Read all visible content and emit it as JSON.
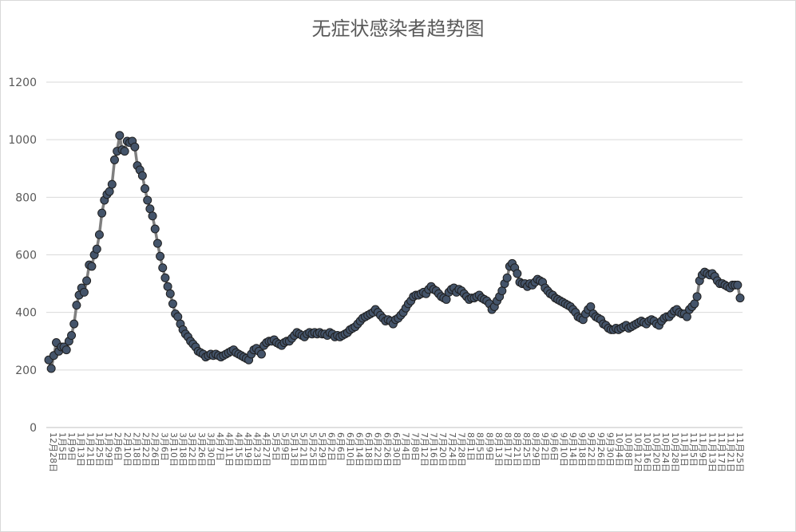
{
  "chart_data": {
    "type": "line",
    "title": "无症状感染者趋势图",
    "xlabel": "",
    "ylabel": "",
    "ylim": [
      0,
      1200
    ],
    "yticks": [
      0,
      200,
      400,
      600,
      800,
      1000,
      1200
    ],
    "grid": true,
    "legend": "none",
    "colors": {
      "line": "#7f7f7f",
      "marker_fill": "#44546a",
      "marker_edge": "#1f1f1f",
      "grid": "#d9d9d9"
    },
    "x_tick_labels": [
      "12月28日",
      "1月5日",
      "1月9日",
      "1月13日",
      "1月21日",
      "1月25日",
      "1月29日",
      "2月6日",
      "2月10日",
      "2月18日",
      "2月22日",
      "2月26日",
      "3月6日",
      "3月10日",
      "3月18日",
      "3月22日",
      "3月26日",
      "3月30日",
      "4月7日",
      "4月11日",
      "4月15日",
      "4月19日",
      "4月23日",
      "4月27日",
      "5月5日",
      "5月9日",
      "5月13日",
      "5月21日",
      "5月25日",
      "5月29日",
      "6月2日",
      "6月6日",
      "6月10日",
      "6月14日",
      "6月18日",
      "6月22日",
      "6月26日",
      "6月30日",
      "7月4日",
      "7月8日",
      "7月12日",
      "7月16日",
      "7月20日",
      "7月24日",
      "7月28日",
      "8月1日",
      "8月5日",
      "8月9日",
      "8月13日",
      "8月17日",
      "8月21日",
      "8月25日",
      "8月29日",
      "9月2日",
      "9月6日",
      "9月10日",
      "9月14日",
      "9月18日",
      "9月22日",
      "9月26日",
      "9月30日",
      "10月4日",
      "10月8日",
      "10月12日",
      "10月16日",
      "10月20日",
      "10月24日",
      "10月28日",
      "11月1日",
      "11月5日",
      "11月9日",
      "11月13日",
      "11月17日",
      "11月21日",
      "11月25日"
    ],
    "series": [
      {
        "values": [
          235,
          205,
          250,
          295,
          265,
          280,
          280,
          270,
          300,
          320,
          360,
          425,
          460,
          485,
          470,
          510,
          565,
          560,
          600,
          620,
          670,
          745,
          790,
          810,
          820,
          845,
          930,
          960,
          1015,
          965,
          960,
          995,
          990,
          995,
          975,
          910,
          895,
          875,
          830,
          790,
          760,
          735,
          690,
          640,
          595,
          555,
          520,
          490,
          465,
          430,
          395,
          385,
          360,
          340,
          325,
          315,
          300,
          290,
          280,
          265,
          260,
          255,
          245,
          250,
          255,
          250,
          255,
          250,
          245,
          250,
          255,
          260,
          265,
          270,
          260,
          255,
          250,
          245,
          240,
          235,
          255,
          270,
          275,
          265,
          255,
          285,
          295,
          300,
          300,
          305,
          295,
          290,
          285,
          295,
          300,
          300,
          310,
          320,
          330,
          325,
          320,
          315,
          325,
          330,
          325,
          330,
          325,
          330,
          325,
          325,
          320,
          330,
          325,
          315,
          320,
          315,
          320,
          325,
          330,
          340,
          345,
          350,
          360,
          370,
          380,
          385,
          390,
          395,
          400,
          410,
          400,
          390,
          380,
          370,
          375,
          370,
          360,
          375,
          380,
          390,
          400,
          415,
          430,
          440,
          455,
          460,
          460,
          465,
          470,
          465,
          480,
          490,
          480,
          475,
          465,
          455,
          450,
          445,
          470,
          480,
          485,
          470,
          480,
          475,
          465,
          455,
          445,
          450,
          450,
          455,
          460,
          450,
          445,
          440,
          430,
          410,
          420,
          440,
          455,
          475,
          500,
          520,
          560,
          570,
          555,
          535,
          505,
          500,
          500,
          490,
          500,
          495,
          505,
          515,
          510,
          505,
          485,
          475,
          465,
          460,
          450,
          445,
          440,
          435,
          430,
          425,
          420,
          410,
          400,
          385,
          380,
          375,
          395,
          410,
          420,
          395,
          385,
          380,
          375,
          360,
          355,
          345,
          340,
          340,
          345,
          340,
          345,
          350,
          355,
          345,
          350,
          355,
          360,
          365,
          370,
          365,
          360,
          370,
          375,
          370,
          360,
          355,
          370,
          380,
          385,
          385,
          395,
          405,
          410,
          400,
          395,
          395,
          385,
          410,
          420,
          430,
          455,
          510,
          530,
          540,
          535,
          530,
          535,
          525,
          510,
          500,
          500,
          495,
          490,
          485,
          495,
          495,
          495,
          450
        ]
      }
    ]
  }
}
